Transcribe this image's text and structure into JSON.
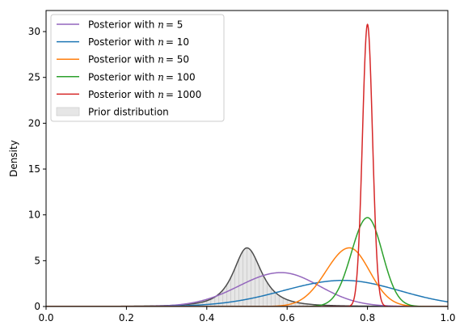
{
  "chart_data": {
    "type": "line",
    "title": "",
    "xlabel": "",
    "ylabel": "Density",
    "xlim": [
      0.0,
      1.0
    ],
    "ylim": [
      0,
      32.3
    ],
    "xticks": [
      "0.0",
      "0.2",
      "0.4",
      "0.6",
      "0.8",
      "1.0"
    ],
    "yticks": [
      "0",
      "5",
      "10",
      "15",
      "20",
      "25",
      "30"
    ],
    "grid": false,
    "legend_position": "top-left",
    "series": [
      {
        "name": "Posterior with n = 5",
        "legend_prefix": "Posterior with ",
        "legend_var": "n",
        "legend_value": "= 5",
        "color": "#9467bd",
        "mode": 0.585,
        "peak": 3.7,
        "sigma_left": 0.105,
        "sigma_right": 0.095
      },
      {
        "name": "Posterior with n = 10",
        "legend_prefix": "Posterior with ",
        "legend_var": "n",
        "legend_value": "= 10",
        "color": "#1f77b4",
        "mode": 0.74,
        "peak": 2.85,
        "sigma_left": 0.15,
        "sigma_right": 0.14
      },
      {
        "name": "Posterior with n = 50",
        "legend_prefix": "Posterior with ",
        "legend_var": "n",
        "legend_value": "= 50",
        "color": "#ff7f0e",
        "mode": 0.755,
        "peak": 6.4,
        "sigma_left": 0.058,
        "sigma_right": 0.05
      },
      {
        "name": "Posterior with n = 100",
        "legend_prefix": "Posterior with ",
        "legend_var": "n",
        "legend_value": "= 100",
        "color": "#2ca02c",
        "mode": 0.8,
        "peak": 9.7,
        "sigma_left": 0.04,
        "sigma_right": 0.037
      },
      {
        "name": "Posterior with n = 1000",
        "legend_prefix": "Posterior with ",
        "legend_var": "n",
        "legend_value": "= 1000",
        "color": "#d62728",
        "mode": 0.8,
        "peak": 30.8,
        "sigma_left": 0.0125,
        "sigma_right": 0.0125
      }
    ],
    "prior": {
      "name": "Prior distribution",
      "mode": 0.5,
      "peak": 6.4,
      "scale_left": 0.052,
      "scale_right": 0.056,
      "fill_color": "#e6e6e6",
      "line_color": "#4d4d4d",
      "hatch_color": "#c8c8c8"
    }
  }
}
